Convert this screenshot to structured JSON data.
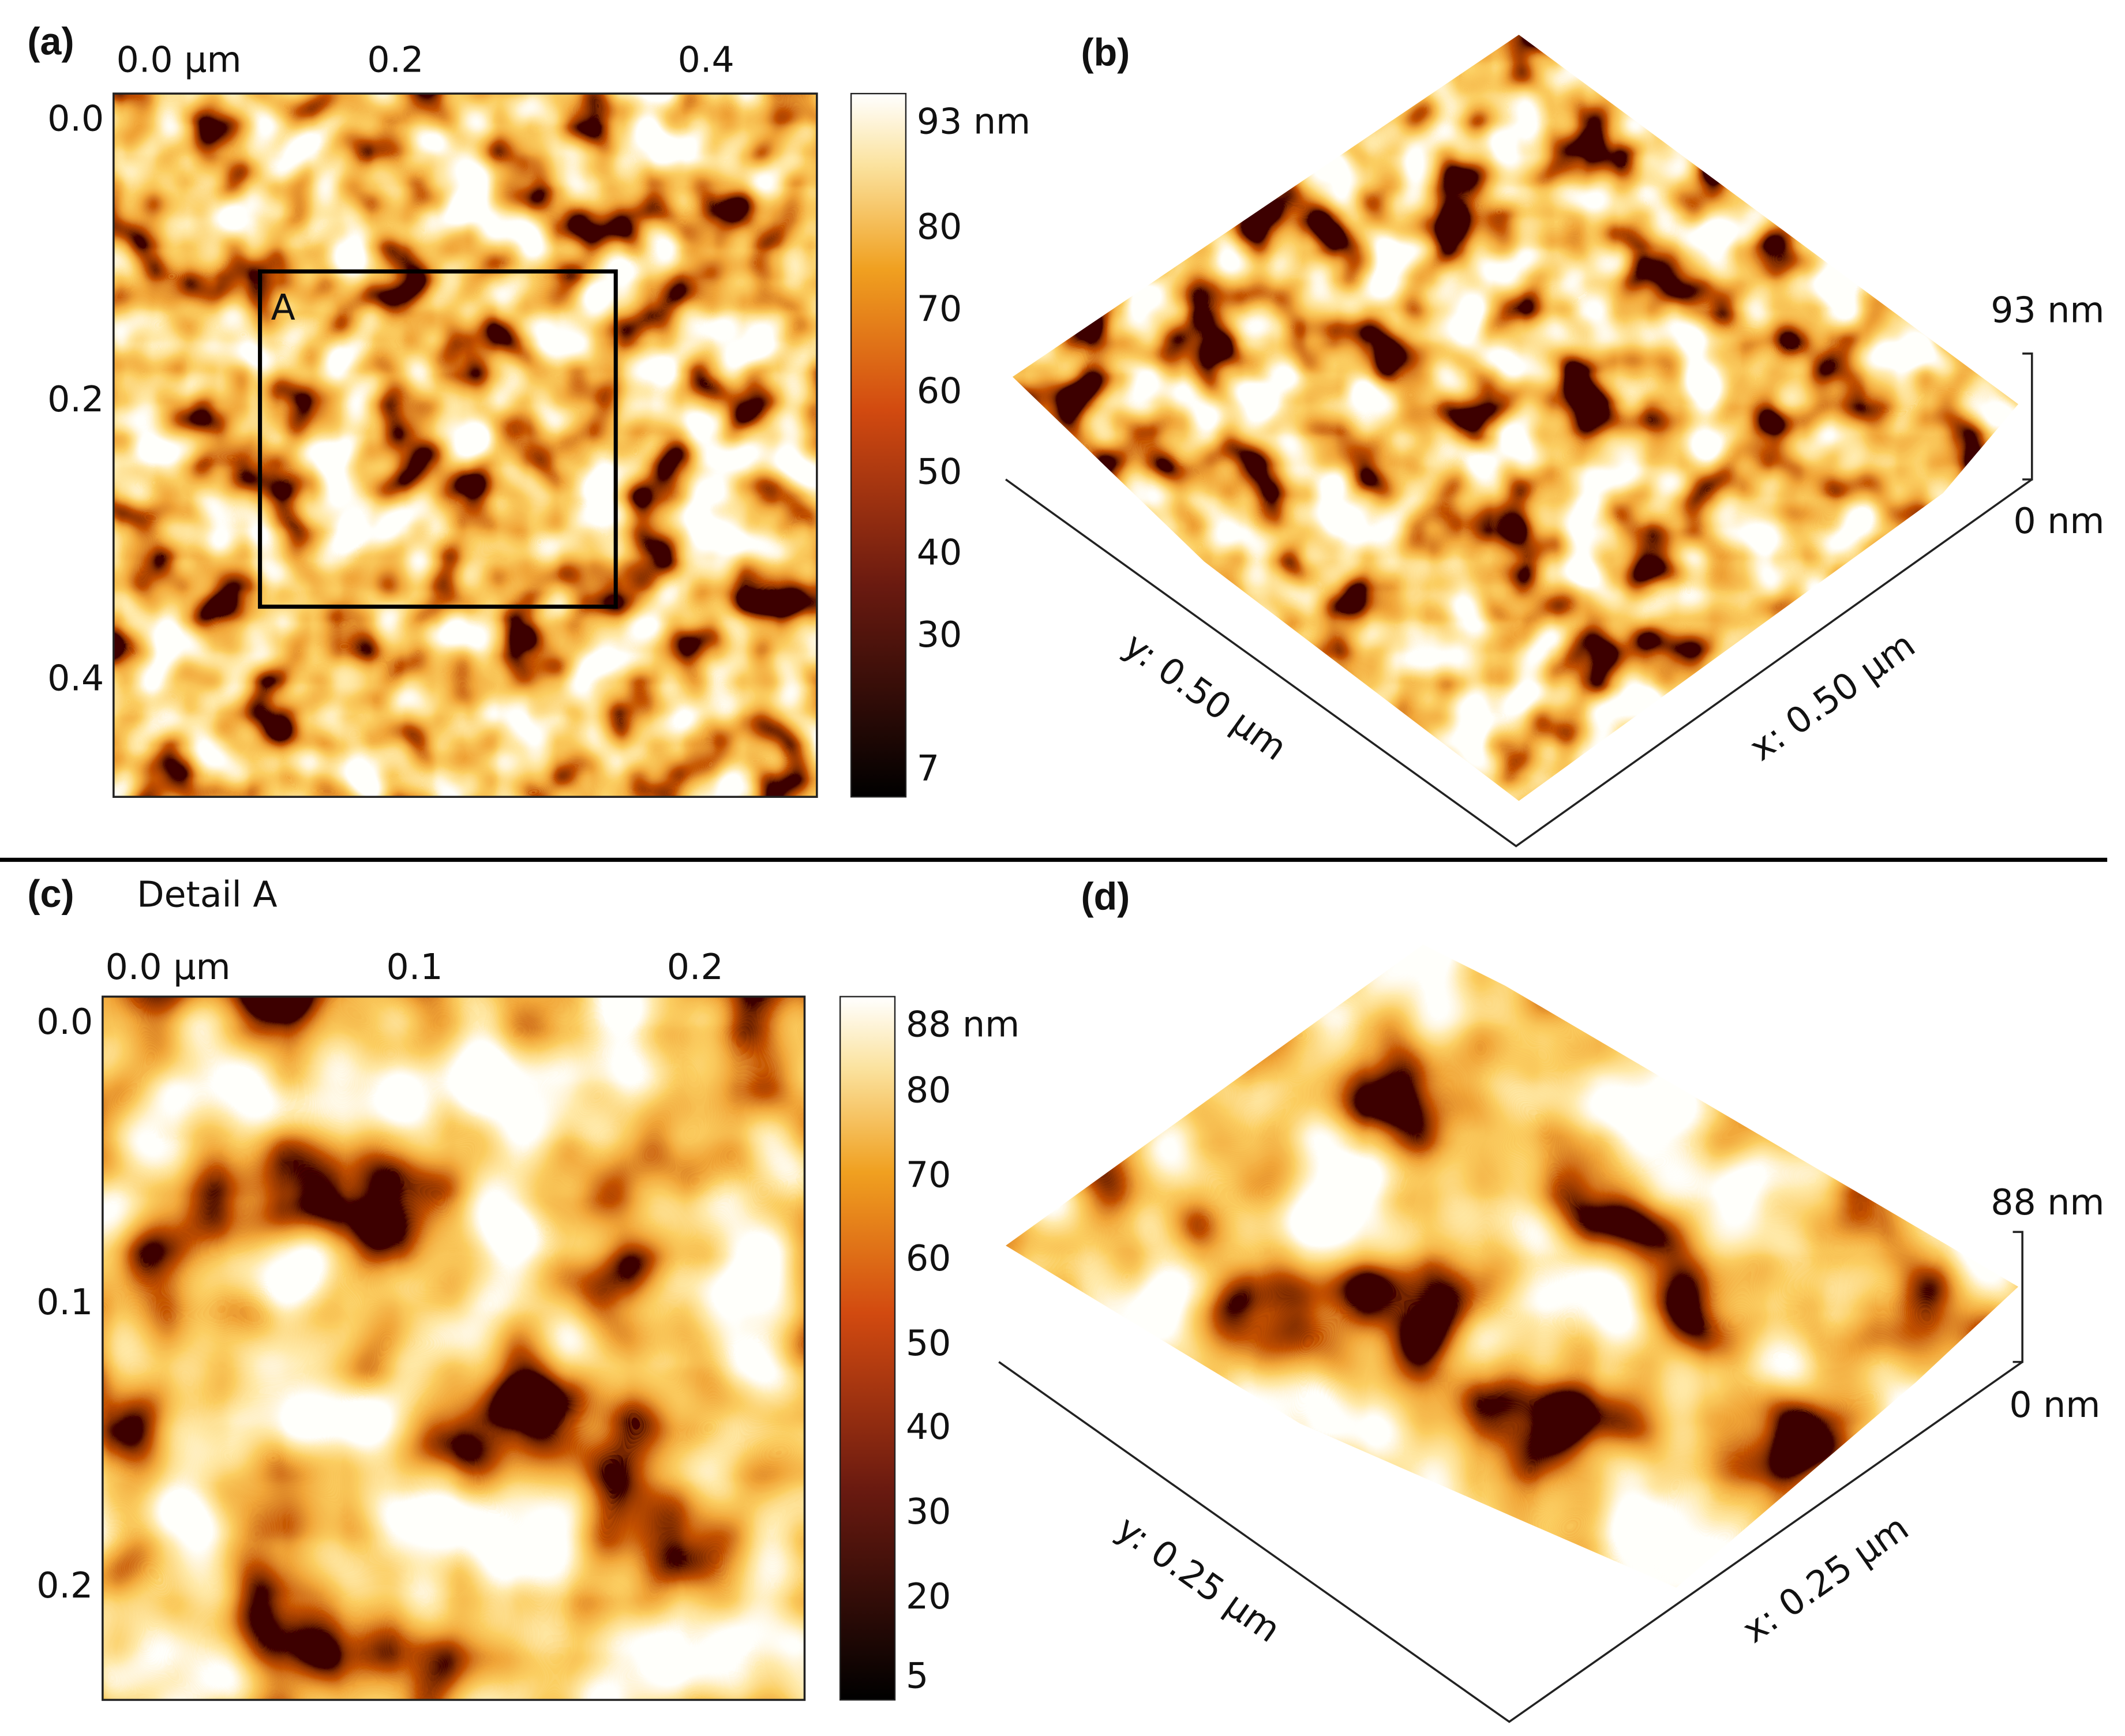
{
  "panels": [
    {
      "label": "(a)",
      "x_ticks": [
        "0.0 µm",
        "0.2",
        "0.4"
      ],
      "y_ticks": [
        "0.0",
        "0.2",
        "0.4"
      ],
      "box_label": "A",
      "colorbar": [
        "93 nm",
        "80",
        "70",
        "60",
        "50",
        "40",
        "30",
        "7"
      ]
    },
    {
      "label": "(b)",
      "z_max": "93 nm",
      "z_min": "0 nm",
      "y_axis": "y: 0.50 µm",
      "x_axis": "x: 0.50 µm"
    },
    {
      "label": "(c)",
      "title": "Detail A",
      "x_ticks": [
        "0.0 µm",
        "0.1",
        "0.2"
      ],
      "y_ticks": [
        "0.0",
        "0.1",
        "0.2"
      ],
      "colorbar": [
        "88 nm",
        "80",
        "70",
        "60",
        "50",
        "40",
        "30",
        "20",
        "5"
      ]
    },
    {
      "label": "(d)",
      "z_max": "88 nm",
      "z_min": "0 nm",
      "y_axis": "y: 0.25 µm",
      "x_axis": "x: 0.25 µm"
    }
  ]
}
